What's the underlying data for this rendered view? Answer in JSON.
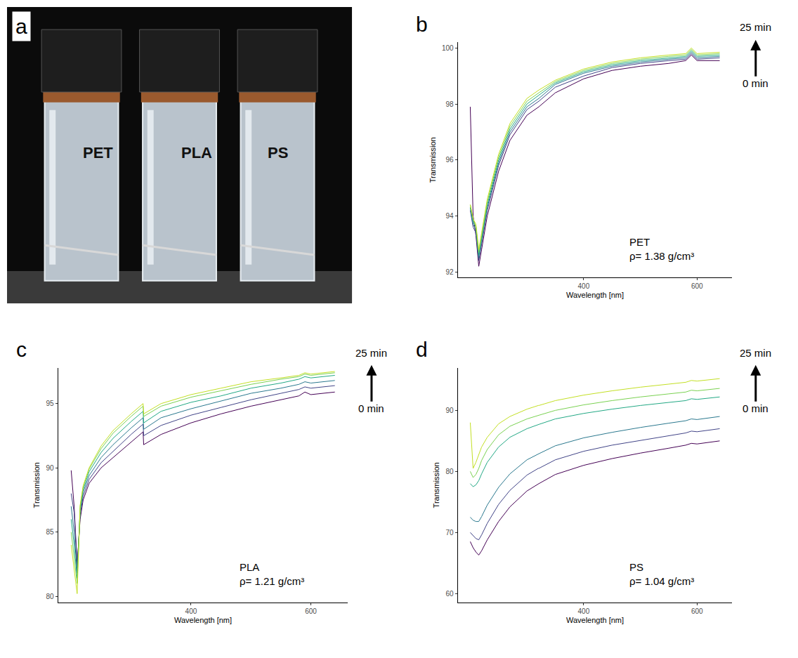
{
  "photo": {
    "panel_label": "a",
    "vial_labels": [
      "PET",
      "PLA",
      "PS"
    ]
  },
  "chart_data": [
    {
      "type": "line",
      "panel_label": "b",
      "sample": "PET",
      "density_label": "ρ= 1.38 g/cm³",
      "arrow_labels": {
        "start": "0 min",
        "end": "25 min"
      },
      "x_label": "Wavelength [nm]",
      "y_label": "Transmission",
      "x": [
        200,
        205,
        210,
        215,
        220,
        230,
        250,
        270,
        300,
        320,
        321,
        350,
        400,
        450,
        500,
        550,
        580,
        590,
        600,
        640
      ],
      "xlim": [
        178,
        662
      ],
      "xticks": [
        400,
        600
      ],
      "ylim": [
        91.8,
        100.2
      ],
      "yticks": [
        92,
        94,
        96,
        98,
        100
      ],
      "grid": false,
      "series": [
        {
          "color": "#440154",
          "values": [
            97.9,
            94.0,
            93.3,
            92.2,
            92.8,
            94.0,
            95.6,
            96.7,
            97.6,
            97.9,
            97.9,
            98.4,
            98.9,
            99.2,
            99.35,
            99.45,
            99.55,
            99.75,
            99.55,
            99.55
          ]
        },
        {
          "color": "#414487",
          "values": [
            94.2,
            93.6,
            93.4,
            92.4,
            93.0,
            94.2,
            95.8,
            96.9,
            97.8,
            98.1,
            98.1,
            98.6,
            99.0,
            99.3,
            99.45,
            99.55,
            99.6,
            99.8,
            99.6,
            99.65
          ]
        },
        {
          "color": "#2a788e",
          "values": [
            94.3,
            93.7,
            93.5,
            92.5,
            93.1,
            94.3,
            95.9,
            97.0,
            97.9,
            98.2,
            98.2,
            98.7,
            99.1,
            99.35,
            99.5,
            99.6,
            99.65,
            99.85,
            99.65,
            99.7
          ]
        },
        {
          "color": "#22a884",
          "values": [
            94.3,
            93.8,
            93.6,
            92.6,
            93.2,
            94.4,
            96.0,
            97.1,
            98.0,
            98.3,
            98.3,
            98.75,
            99.15,
            99.4,
            99.55,
            99.65,
            99.7,
            99.9,
            99.7,
            99.75
          ]
        },
        {
          "color": "#7ad151",
          "values": [
            94.4,
            93.9,
            93.6,
            92.7,
            93.3,
            94.5,
            96.1,
            97.2,
            98.1,
            98.4,
            98.4,
            98.8,
            99.2,
            99.45,
            99.6,
            99.7,
            99.75,
            99.95,
            99.75,
            99.8
          ]
        },
        {
          "color": "#c2df23",
          "values": [
            94.4,
            93.9,
            93.7,
            92.8,
            93.4,
            94.6,
            96.2,
            97.3,
            98.2,
            98.5,
            98.5,
            98.85,
            99.25,
            99.5,
            99.65,
            99.75,
            99.8,
            100.0,
            99.8,
            99.85
          ]
        }
      ]
    },
    {
      "type": "line",
      "panel_label": "c",
      "sample": "PLA",
      "density_label": "ρ= 1.21 g/cm³",
      "arrow_labels": {
        "start": "0 min",
        "end": "25 min"
      },
      "x_label": "Wavelength [nm]",
      "y_label": "Transmission",
      "x": [
        200,
        205,
        210,
        215,
        220,
        230,
        250,
        270,
        300,
        320,
        321,
        350,
        400,
        450,
        500,
        550,
        580,
        590,
        600,
        640
      ],
      "xlim": [
        178,
        662
      ],
      "xticks": [
        400,
        600
      ],
      "ylim": [
        79.5,
        97.8
      ],
      "yticks": [
        80,
        85,
        90,
        95
      ],
      "grid": false,
      "series": [
        {
          "color": "#440154",
          "values": [
            89.8,
            87.0,
            82.5,
            86.0,
            87.5,
            88.8,
            90.0,
            90.8,
            92.0,
            92.8,
            91.8,
            92.6,
            93.5,
            94.2,
            94.8,
            95.3,
            95.6,
            95.9,
            95.7,
            95.9
          ]
        },
        {
          "color": "#414487",
          "values": [
            88.0,
            86.5,
            82.2,
            86.3,
            87.8,
            89.1,
            90.4,
            91.3,
            92.6,
            93.4,
            92.5,
            93.3,
            94.1,
            94.7,
            95.3,
            95.8,
            96.1,
            96.3,
            96.2,
            96.4
          ]
        },
        {
          "color": "#2a788e",
          "values": [
            87.0,
            85.0,
            81.8,
            86.6,
            88.1,
            89.4,
            90.8,
            91.8,
            93.1,
            93.9,
            93.0,
            93.9,
            94.6,
            95.2,
            95.8,
            96.2,
            96.5,
            96.7,
            96.6,
            96.8
          ]
        },
        {
          "color": "#22a884",
          "values": [
            86.0,
            84.0,
            81.4,
            86.8,
            88.3,
            89.7,
            91.2,
            92.3,
            93.6,
            94.4,
            93.5,
            94.4,
            95.1,
            95.6,
            96.2,
            96.6,
            96.9,
            97.1,
            97.0,
            97.2
          ]
        },
        {
          "color": "#7ad151",
          "values": [
            85.0,
            83.0,
            81.0,
            87.0,
            88.5,
            89.9,
            91.5,
            92.7,
            94.0,
            94.8,
            94.0,
            94.8,
            95.5,
            96.0,
            96.5,
            96.9,
            97.1,
            97.3,
            97.2,
            97.4
          ]
        },
        {
          "color": "#c2df23",
          "values": [
            84.0,
            82.0,
            80.2,
            87.1,
            88.6,
            90.0,
            91.7,
            92.9,
            94.2,
            95.0,
            94.2,
            95.0,
            95.7,
            96.2,
            96.7,
            97.0,
            97.2,
            97.4,
            97.3,
            97.5
          ]
        }
      ]
    },
    {
      "type": "line",
      "panel_label": "d",
      "sample": "PS",
      "density_label": "ρ= 1.04 g/cm³",
      "arrow_labels": {
        "start": "0 min",
        "end": "25 min"
      },
      "x_label": "Wavelength [nm]",
      "y_label": "Transmission",
      "x": [
        200,
        205,
        210,
        215,
        220,
        230,
        250,
        270,
        300,
        320,
        321,
        350,
        400,
        450,
        500,
        550,
        580,
        590,
        600,
        640
      ],
      "xlim": [
        178,
        662
      ],
      "xticks": [
        400,
        600
      ],
      "ylim": [
        58.5,
        97
      ],
      "yticks": [
        60,
        70,
        80,
        90
      ],
      "grid": false,
      "series": [
        {
          "color": "#440154",
          "values": [
            68.5,
            67.5,
            66.8,
            66.3,
            67.0,
            68.8,
            71.8,
            74.2,
            76.8,
            78.0,
            78.0,
            79.5,
            81.0,
            82.1,
            83.0,
            83.8,
            84.3,
            84.6,
            84.5,
            85.0
          ]
        },
        {
          "color": "#414487",
          "values": [
            70.0,
            69.5,
            69.0,
            68.8,
            69.6,
            71.5,
            74.6,
            76.9,
            79.4,
            80.5,
            80.5,
            81.9,
            83.3,
            84.3,
            85.1,
            85.9,
            86.3,
            86.6,
            86.5,
            87.0
          ]
        },
        {
          "color": "#2a788e",
          "values": [
            72.5,
            72.0,
            71.8,
            71.8,
            72.6,
            74.5,
            77.4,
            79.6,
            81.9,
            82.9,
            82.9,
            84.2,
            85.5,
            86.4,
            87.2,
            87.9,
            88.3,
            88.6,
            88.5,
            89.0
          ]
        },
        {
          "color": "#22a884",
          "values": [
            78.0,
            77.5,
            77.8,
            78.5,
            79.6,
            81.5,
            84.0,
            85.6,
            87.0,
            87.7,
            87.7,
            88.6,
            89.5,
            90.2,
            90.8,
            91.3,
            91.6,
            91.9,
            91.8,
            92.2
          ]
        },
        {
          "color": "#7ad151",
          "values": [
            80.0,
            79.0,
            79.5,
            80.5,
            81.8,
            83.6,
            86.0,
            87.4,
            88.6,
            89.2,
            89.2,
            90.0,
            90.9,
            91.6,
            92.2,
            92.7,
            93.0,
            93.3,
            93.2,
            93.6
          ]
        },
        {
          "color": "#c2df23",
          "values": [
            88.0,
            80.5,
            81.5,
            82.8,
            84.0,
            85.6,
            87.8,
            89.0,
            90.2,
            90.8,
            90.8,
            91.6,
            92.5,
            93.2,
            93.8,
            94.3,
            94.6,
            94.9,
            94.8,
            95.2
          ]
        }
      ]
    }
  ]
}
